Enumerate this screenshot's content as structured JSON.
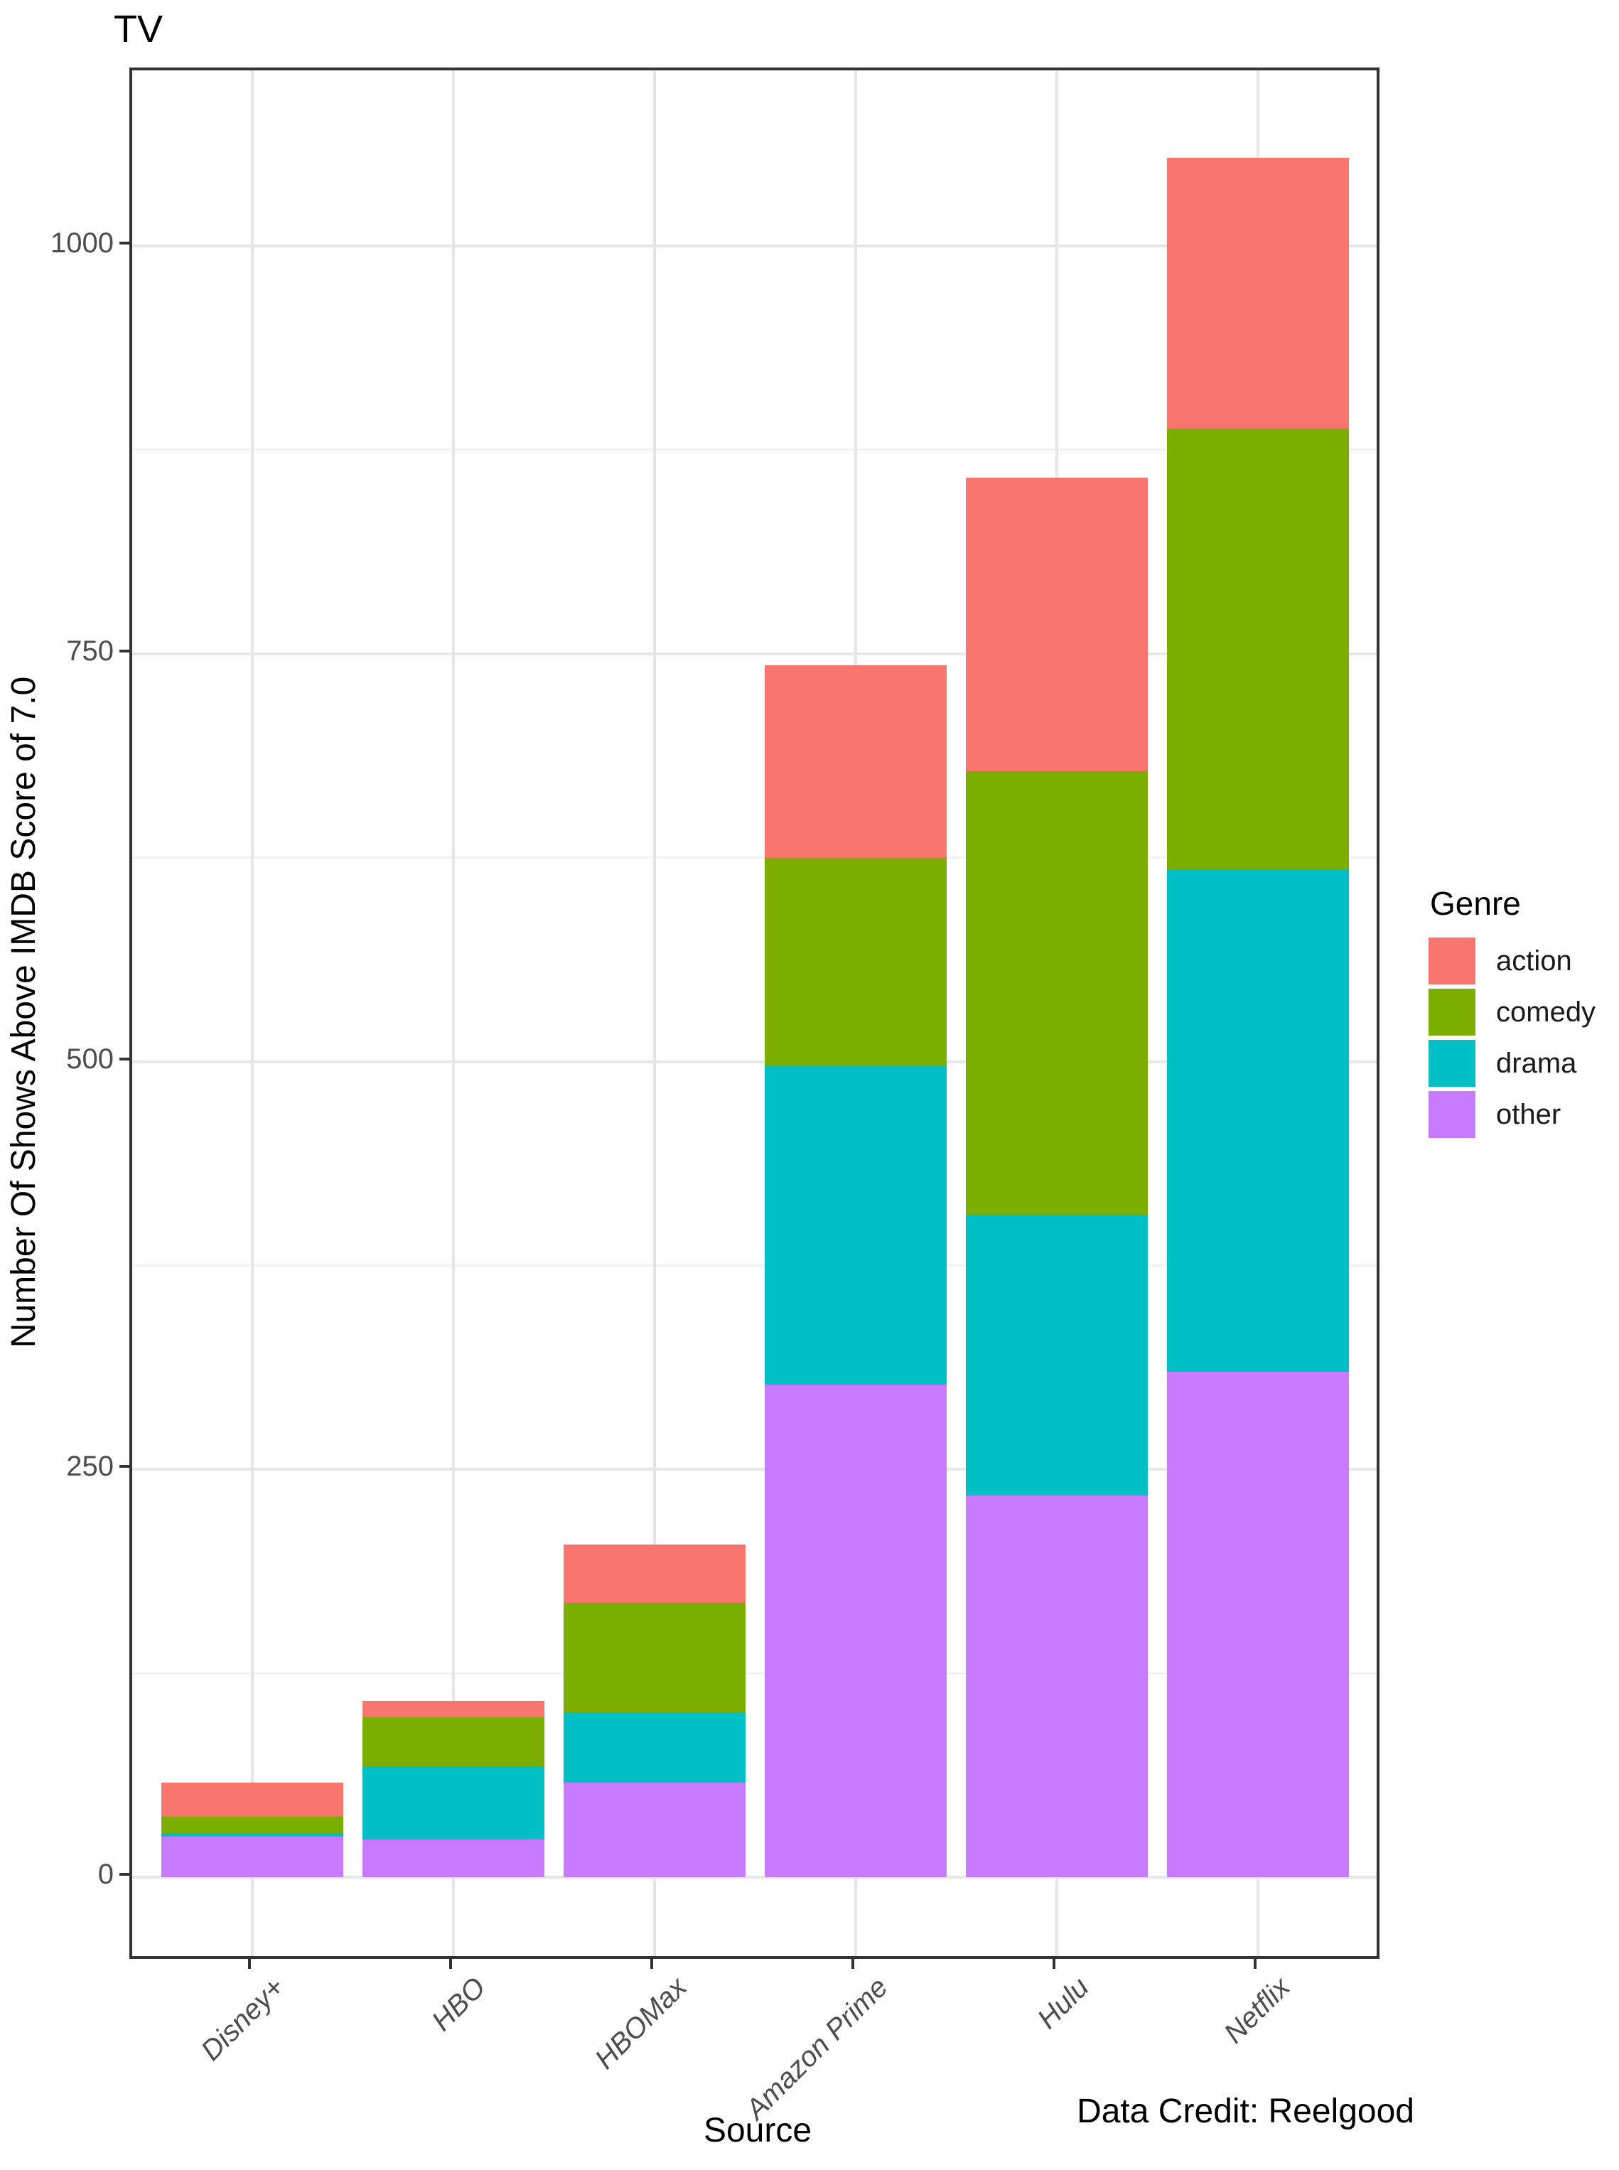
{
  "title": "TV",
  "axes": {
    "x_title": "Source",
    "y_title": "Number Of Shows Above IMDB Score of 7.0"
  },
  "caption": "Data Credit: Reelgood",
  "legend": {
    "title": "Genre",
    "items": [
      {
        "label": "action",
        "color": "#F8766D"
      },
      {
        "label": "comedy",
        "color": "#7CAE00"
      },
      {
        "label": "drama",
        "color": "#00BFC4"
      },
      {
        "label": "other",
        "color": "#C77CFF"
      }
    ]
  },
  "chart_data": {
    "type": "bar",
    "stacked": true,
    "title": "TV",
    "xlabel": "Source",
    "ylabel": "Number Of Shows Above IMDB Score of 7.0",
    "caption": "Data Credit: Reelgood",
    "categories": [
      "Disney+",
      "HBO",
      "HBOMax",
      "Amazon Prime",
      "Hulu",
      "Netflix"
    ],
    "series": [
      {
        "name": "action",
        "color": "#F8766D",
        "values": [
          21,
          10,
          36,
          118,
          180,
          166
        ]
      },
      {
        "name": "comedy",
        "color": "#7CAE00",
        "values": [
          10,
          30,
          67,
          128,
          272,
          270
        ]
      },
      {
        "name": "drama",
        "color": "#00BFC4",
        "values": [
          2,
          45,
          43,
          195,
          172,
          308
        ]
      },
      {
        "name": "other",
        "color": "#C77CFF",
        "values": [
          25,
          23,
          58,
          302,
          234,
          310
        ]
      }
    ],
    "stack_order_bottom_to_top": [
      "other",
      "drama",
      "comedy",
      "action"
    ],
    "stack_totals": [
      58,
      108,
      204,
      743,
      858,
      1054
    ],
    "ylim": [
      0,
      1109
    ],
    "y_major_ticks": [
      0,
      250,
      500,
      750,
      1000
    ],
    "y_minor_ticks": [
      125,
      375,
      625,
      875
    ],
    "grid": true,
    "legend_position": "right",
    "legend_title": "Genre"
  }
}
